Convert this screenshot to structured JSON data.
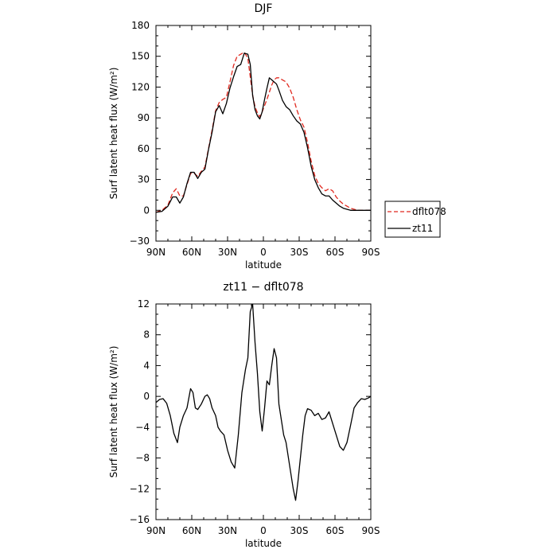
{
  "chart_data": [
    {
      "type": "line",
      "title": "DJF",
      "xlabel": "latitude",
      "ylabel": "Surf latent heat flux (W/m²)",
      "xlim": [
        90,
        -90
      ],
      "ylim": [
        -30,
        180
      ],
      "x_ticks": [
        90,
        60,
        30,
        0,
        -30,
        -60,
        -90
      ],
      "x_tick_labels": [
        "90N",
        "60N",
        "30N",
        "0",
        "30S",
        "60S",
        "90S"
      ],
      "y_ticks": [
        -30,
        0,
        30,
        60,
        90,
        120,
        150,
        180
      ],
      "y_tick_labels": [
        "−30",
        "0",
        "30",
        "60",
        "90",
        "120",
        "150",
        "180"
      ],
      "grid": false,
      "legend": "right",
      "series": [
        {
          "name": "dflt078",
          "color": "#e0281e",
          "dash": "dashed",
          "x": [
            90,
            85,
            80,
            76,
            73,
            70,
            67,
            64,
            61,
            58,
            55,
            52,
            49,
            46,
            43,
            40,
            37,
            34,
            31,
            28,
            25,
            22,
            19,
            16,
            13,
            11,
            9,
            7,
            5,
            3,
            1,
            -1,
            -3,
            -5,
            -7,
            -9,
            -11,
            -13,
            -16,
            -19,
            -22,
            -25,
            -28,
            -31,
            -34,
            -37,
            -40,
            -43,
            -46,
            -49,
            -52,
            -55,
            -58,
            -61,
            -64,
            -67,
            -70,
            -73,
            -76,
            -79,
            -82,
            -85,
            -88,
            -90
          ],
          "y": [
            -2,
            0,
            5,
            17,
            21,
            14,
            14,
            25,
            36,
            36,
            33,
            38,
            42,
            60,
            78,
            97,
            105,
            108,
            110,
            125,
            141,
            150,
            152,
            154,
            148,
            130,
            112,
            101,
            95,
            91,
            96,
            102,
            108,
            115,
            122,
            127,
            129,
            129,
            127,
            125,
            119,
            110,
            98,
            88,
            81,
            66,
            48,
            34,
            26,
            22,
            19,
            21,
            19,
            13,
            9,
            6,
            4,
            2,
            1,
            0,
            0,
            0,
            0,
            0
          ]
        },
        {
          "name": "zt11",
          "color": "#000000",
          "dash": "solid",
          "x": [
            90,
            85,
            80,
            76,
            73,
            70,
            67,
            64,
            61,
            58,
            55,
            52,
            49,
            46,
            43,
            40,
            37,
            34,
            31,
            28,
            25,
            22,
            19,
            16,
            13,
            11,
            9,
            7,
            5,
            3,
            1,
            -1,
            -3,
            -5,
            -7,
            -9,
            -11,
            -13,
            -16,
            -19,
            -22,
            -25,
            -28,
            -31,
            -34,
            -37,
            -40,
            -43,
            -46,
            -49,
            -52,
            -55,
            -58,
            -61,
            -64,
            -67,
            -70,
            -73,
            -76,
            -79,
            -82,
            -85,
            -88,
            -90
          ],
          "y": [
            -2,
            -1,
            4,
            13,
            13,
            7,
            13,
            26,
            37,
            37,
            31,
            37,
            40,
            59,
            76,
            96,
            102,
            94,
            104,
            119,
            130,
            140,
            142,
            153,
            152,
            142,
            112,
            98,
            92,
            89,
            96,
            108,
            119,
            129,
            127,
            125,
            123,
            117,
            107,
            101,
            98,
            92,
            87,
            84,
            76,
            61,
            43,
            30,
            22,
            16,
            14,
            14,
            10,
            7,
            4,
            2,
            1,
            0,
            0,
            0,
            0,
            0,
            0,
            0
          ]
        }
      ]
    },
    {
      "type": "line",
      "title": "zt11 − dflt078",
      "xlabel": "latitude",
      "ylabel": "Surf latent heat flux (W/m²)",
      "xlim": [
        90,
        -90
      ],
      "ylim": [
        -16,
        12
      ],
      "x_ticks": [
        90,
        60,
        30,
        0,
        -30,
        -60,
        -90
      ],
      "x_tick_labels": [
        "90N",
        "60N",
        "30N",
        "0",
        "30S",
        "60S",
        "90S"
      ],
      "y_ticks": [
        -16,
        -12,
        -8,
        -4,
        0,
        4,
        8,
        12
      ],
      "y_tick_labels": [
        "−16",
        "−12",
        "−8",
        "−4",
        "0",
        "4",
        "8",
        "12"
      ],
      "grid": false,
      "series": [
        {
          "name": "",
          "color": "#000000",
          "dash": "solid",
          "x": [
            90,
            87,
            84,
            81,
            78,
            75,
            72,
            70,
            67,
            64,
            61,
            59,
            57,
            55,
            52,
            49,
            47,
            45,
            43,
            40,
            38,
            36,
            33,
            30,
            27,
            24,
            21,
            18,
            15,
            13,
            11,
            9,
            7,
            5,
            3,
            1,
            -1,
            -3,
            -5,
            -7,
            -9,
            -11,
            -13,
            -15,
            -17,
            -19,
            -21,
            -23,
            -25,
            -27,
            -29,
            -31,
            -33,
            -35,
            -37,
            -40,
            -43,
            -46,
            -49,
            -52,
            -55,
            -58,
            -61,
            -64,
            -67,
            -70,
            -73,
            -76,
            -79,
            -82,
            -85,
            -88,
            -90
          ],
          "y": [
            -0.8,
            -0.4,
            -0.3,
            -0.9,
            -2.5,
            -4.8,
            -6.0,
            -4.0,
            -2.5,
            -1.5,
            1.0,
            0.5,
            -1.5,
            -1.7,
            -1.0,
            0.0,
            0.2,
            -0.3,
            -1.5,
            -2.5,
            -4.0,
            -4.5,
            -5.0,
            -7.0,
            -8.5,
            -9.3,
            -5.0,
            0.5,
            3.5,
            5.0,
            11.0,
            12.0,
            7.0,
            3.0,
            -2.0,
            -4.5,
            -1.5,
            2.0,
            1.5,
            4.0,
            6.2,
            5.0,
            -1.0,
            -3.0,
            -5.0,
            -6.0,
            -8.0,
            -10.0,
            -12.0,
            -13.5,
            -11.0,
            -8.0,
            -5.0,
            -2.5,
            -1.6,
            -1.8,
            -2.5,
            -2.2,
            -3.0,
            -2.8,
            -2.0,
            -3.5,
            -5.0,
            -6.5,
            -7.0,
            -6.0,
            -3.8,
            -1.5,
            -0.8,
            -0.3,
            -0.4,
            -0.2,
            0.0
          ]
        }
      ]
    }
  ]
}
